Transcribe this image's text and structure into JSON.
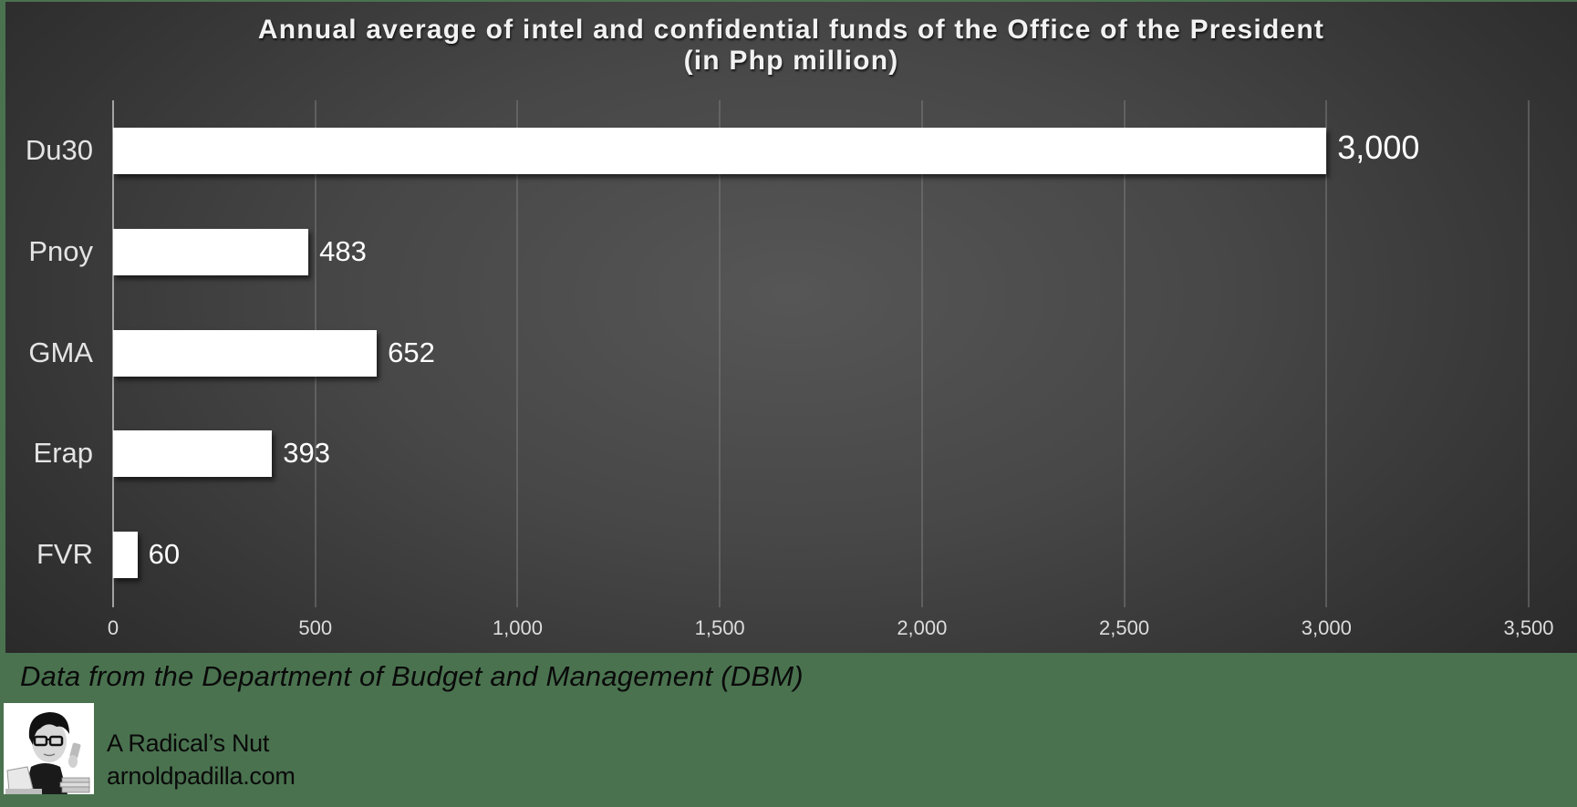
{
  "chart_data": {
    "type": "bar",
    "orientation": "horizontal",
    "title": "Annual average of intel and confidential funds of the Office of the President",
    "subtitle": "(in Php million)",
    "categories": [
      "Du30",
      "Pnoy",
      "GMA",
      "Erap",
      "FVR"
    ],
    "values": [
      3000,
      483,
      652,
      393,
      60
    ],
    "value_labels": [
      "3,000",
      "483",
      "652",
      "393",
      "60"
    ],
    "xlabel": "",
    "ylabel": "",
    "xlim": [
      0,
      3500
    ],
    "x_ticks": [
      0,
      500,
      1000,
      1500,
      2000,
      2500,
      3000,
      3500
    ],
    "x_tick_labels": [
      "0",
      "500",
      "1,000",
      "1,500",
      "2,000",
      "2,500",
      "3,000",
      "3,500"
    ],
    "grid": true,
    "legend": "none",
    "bar_color": "#ffffff",
    "background": "dark gray radial gradient"
  },
  "title_line1": "Annual average of intel and confidential funds of the Office of the President",
  "title_line2": "(in Php million)",
  "footer": {
    "source": "Data from the Department of Budget and Management (DBM)",
    "brand_name": "A Radical’s Nut",
    "brand_url": "arnoldpadilla.com",
    "avatar_icon": "caricature-avatar-icon"
  },
  "colors": {
    "page_background": "#4a724f",
    "bar": "#ffffff",
    "text_light": "#e4e4e4",
    "text_dark": "#0a0a0a"
  }
}
